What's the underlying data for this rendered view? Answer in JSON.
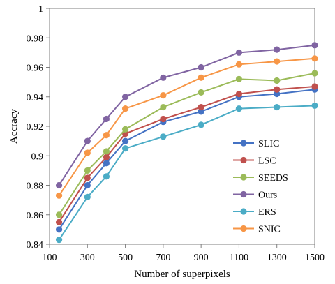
{
  "chart_data": {
    "type": "line",
    "title": "",
    "xlabel": "Number of superpixels",
    "ylabel": "Accracy",
    "x": [
      150,
      300,
      400,
      500,
      700,
      900,
      1100,
      1300,
      1500
    ],
    "x_ticks": [
      "100",
      "300",
      "500",
      "700",
      "900",
      "1100",
      "1300",
      "1500"
    ],
    "x_tick_values": [
      100,
      300,
      500,
      700,
      900,
      1100,
      1300,
      1500
    ],
    "xlim": [
      100,
      1500
    ],
    "y_ticks": [
      "0.84",
      "0.86",
      "0.88",
      "0.9",
      "0.92",
      "0.94",
      "0.96",
      "0.98",
      "1"
    ],
    "y_tick_values": [
      0.84,
      0.86,
      0.88,
      0.9,
      0.92,
      0.94,
      0.96,
      0.98,
      1.0
    ],
    "ylim": [
      0.84,
      1.0
    ],
    "grid": false,
    "legend_position": "lower-right",
    "series": [
      {
        "name": "SLIC",
        "color": "#4472C4",
        "values": [
          0.85,
          0.88,
          0.895,
          0.91,
          0.923,
          0.93,
          0.94,
          0.942,
          0.945
        ]
      },
      {
        "name": "LSC",
        "color": "#C0504D",
        "values": [
          0.855,
          0.885,
          0.899,
          0.915,
          0.925,
          0.933,
          0.942,
          0.945,
          0.947
        ]
      },
      {
        "name": "SEEDS",
        "color": "#9BBB59",
        "values": [
          0.86,
          0.89,
          0.903,
          0.918,
          0.933,
          0.943,
          0.952,
          0.951,
          0.956
        ]
      },
      {
        "name": "Ours",
        "color": "#8064A2",
        "values": [
          0.88,
          0.91,
          0.925,
          0.94,
          0.953,
          0.96,
          0.97,
          0.972,
          0.975
        ]
      },
      {
        "name": "ERS",
        "color": "#4BACC6",
        "values": [
          0.843,
          0.872,
          0.886,
          0.905,
          0.913,
          0.921,
          0.932,
          0.933,
          0.934
        ]
      },
      {
        "name": "SNIC",
        "color": "#F79646",
        "values": [
          0.873,
          0.902,
          0.914,
          0.932,
          0.941,
          0.953,
          0.962,
          0.964,
          0.966
        ]
      }
    ]
  }
}
